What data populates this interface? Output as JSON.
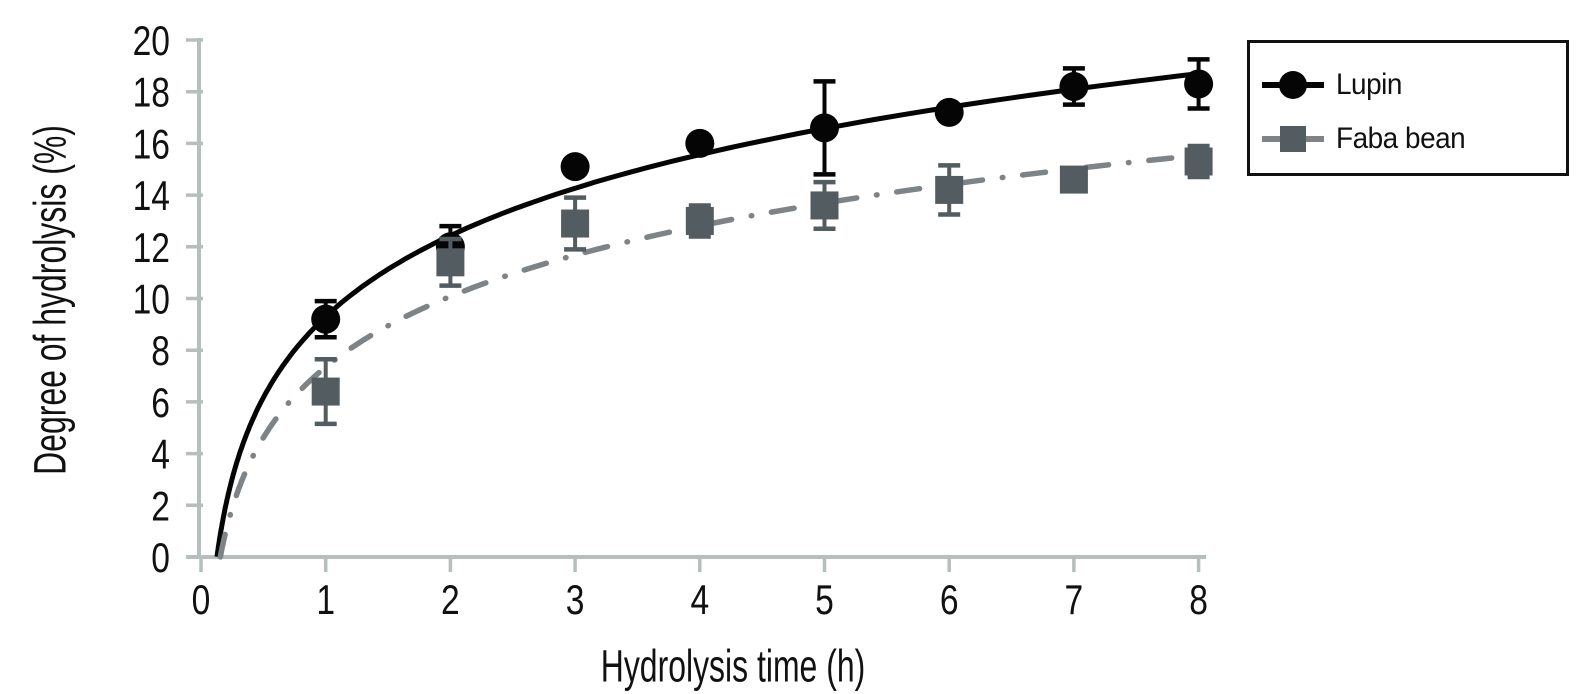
{
  "figure": {
    "background": "#ffffff",
    "axis_color": "#b7bebe",
    "text_color": "#111111"
  },
  "chart_data": {
    "type": "scatter",
    "title": "",
    "xlabel": "Hydrolysis time (h)",
    "ylabel": "Degree of hydrolysis (%)",
    "xlim": [
      0,
      8.2
    ],
    "ylim": [
      0,
      20
    ],
    "xticks": [
      0,
      1,
      2,
      3,
      4,
      5,
      6,
      7,
      8
    ],
    "yticks": [
      0,
      2,
      4,
      6,
      8,
      10,
      12,
      14,
      16,
      18,
      20
    ],
    "grid": false,
    "legend_position": "top-right",
    "series": [
      {
        "name": "Lupin",
        "marker": "circle",
        "marker_color": "#050505",
        "line_color": "#050505",
        "line_style": "solid",
        "x": [
          1,
          2,
          3,
          4,
          5,
          6,
          7,
          8
        ],
        "y": [
          9.2,
          12.0,
          15.1,
          16.0,
          16.6,
          17.2,
          18.2,
          18.3
        ],
        "yerr": [
          0.7,
          0.8,
          0,
          0,
          1.8,
          0,
          0.7,
          0.95
        ],
        "trend_fit": {
          "model": "y = a + b*ln(t)",
          "a": 9.3,
          "b": 4.52,
          "t_start": 0.128,
          "t_end": 8.0
        }
      },
      {
        "name": "Faba bean",
        "marker": "square",
        "marker_color": "#525c61",
        "line_color": "#7d8387",
        "line_style": "dash-dot",
        "x": [
          1,
          2,
          3,
          4,
          5,
          6,
          7,
          8
        ],
        "y": [
          6.4,
          11.4,
          12.9,
          13.0,
          13.6,
          14.2,
          14.6,
          15.3
        ],
        "yerr": [
          1.25,
          0.9,
          1.0,
          0.6,
          0.9,
          0.95,
          0,
          0.6
        ],
        "trend_fit": {
          "model": "y = a + b*ln(t)",
          "a": 7.35,
          "b": 3.94,
          "t_start": 0.155,
          "t_end": 8.05
        }
      }
    ]
  }
}
